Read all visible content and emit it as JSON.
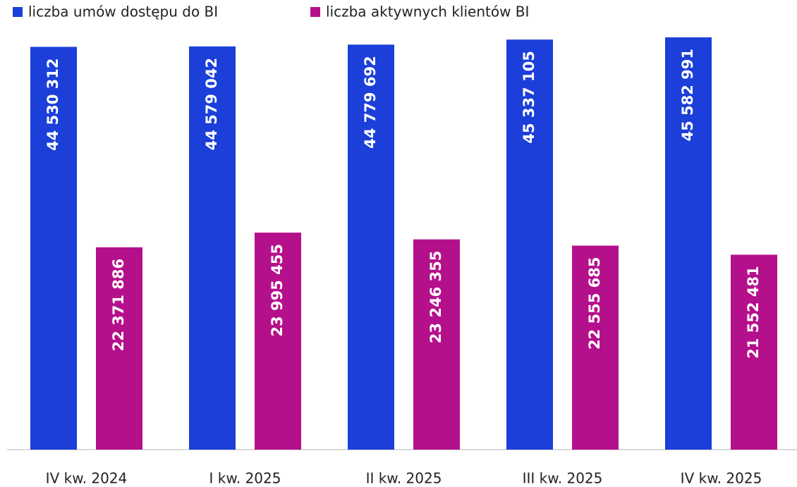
{
  "chart_data": {
    "type": "bar",
    "categories": [
      "IV kw. 2024",
      "I kw. 2025",
      "II kw. 2025",
      "III kw. 2025",
      "IV kw. 2025"
    ],
    "series": [
      {
        "name": "liczba umów dostępu do BI",
        "color": "#1b3fd8",
        "values": [
          44530312,
          44579042,
          44779692,
          45337105,
          45582991
        ],
        "value_labels": [
          "44 530 312",
          "44 579 042",
          "44 779 692",
          "45 337 105",
          "45 582 991"
        ]
      },
      {
        "name": "liczba aktywnych klientów BI",
        "color": "#b5108b",
        "values": [
          22371886,
          23995455,
          23246355,
          22555685,
          21552481
        ],
        "value_labels": [
          "22 371 886",
          "23 995 455",
          "23 246 355",
          "22 555 685",
          "21 552 481"
        ]
      }
    ],
    "legend": "top-left"
  }
}
